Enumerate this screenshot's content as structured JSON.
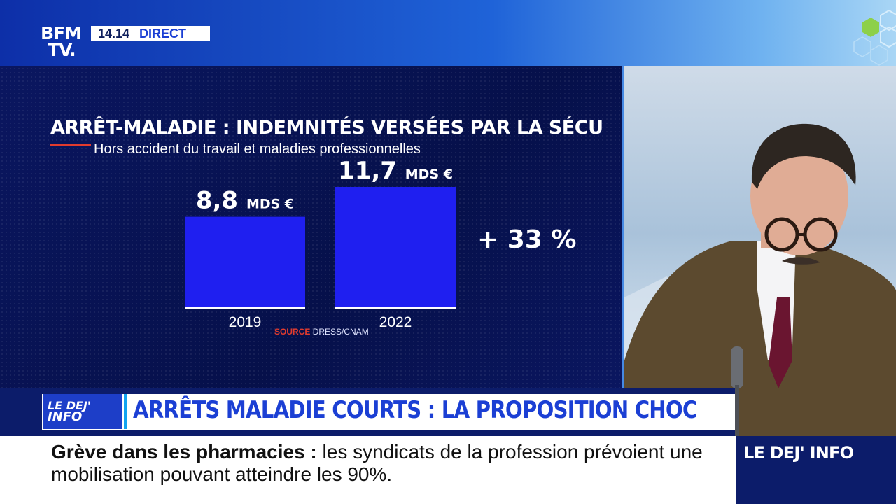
{
  "channel": {
    "logo_line1": "BFM",
    "logo_line2": "TV.",
    "time": "14.14",
    "live_label": "DIRECT"
  },
  "chart_data": {
    "type": "bar",
    "title": "ARRÊT-MALADIE : INDEMNITÉS VERSÉES PAR LA SÉCU",
    "subtitle": "Hors accident du travail et maladies professionnelles",
    "categories": [
      "2019",
      "2022"
    ],
    "values": [
      8.8,
      11.7
    ],
    "value_labels": [
      "8,8",
      "11,7"
    ],
    "unit": "MDS €",
    "annotation": "+ 33 %",
    "source_key": "SOURCE",
    "source_value": "DRESS/CNAM",
    "bar_color": "#1f1ff0"
  },
  "headline": {
    "program_logo_line1": "LE DEJ'",
    "program_logo_line2": "INFO",
    "text": "ARRÊTS MALADIE COURTS : LA PROPOSITION CHOC"
  },
  "ticker": {
    "topic": "Grève dans les pharmacies  :",
    "text": " les syndicats de la profession prévoient une mobilisation pouvant atteindre les 90%.",
    "program_label": "LE DEJ' INFO"
  },
  "colors": {
    "accent_red": "#e23b2e",
    "brand_blue": "#1b3fd4",
    "navy": "#0c1c6a"
  }
}
